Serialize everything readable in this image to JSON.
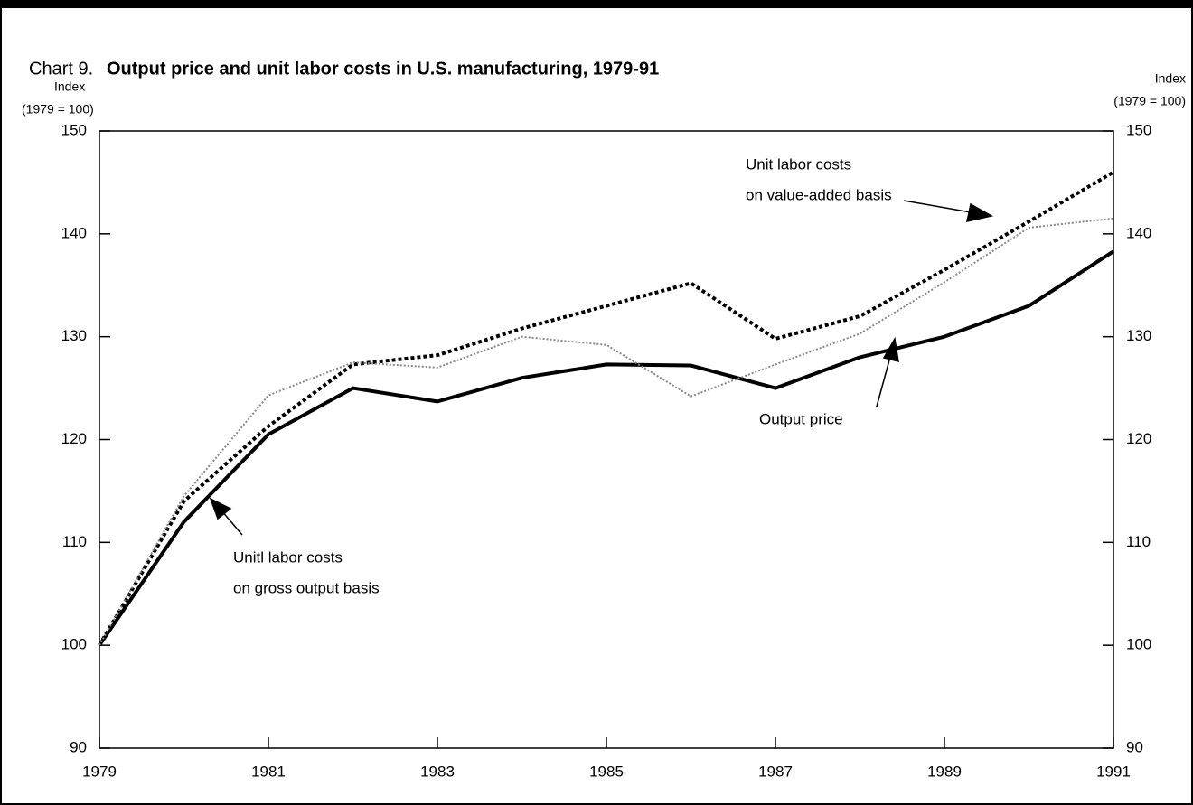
{
  "chart_data": {
    "type": "line",
    "chart_label": "Chart 9.",
    "title": "Output price and unit labor costs in U.S. manufacturing, 1979-91",
    "y_label": [
      "Index",
      "(1979 = 100)"
    ],
    "y2_label": [
      "Index",
      "(1979 = 100)"
    ],
    "x": [
      1979,
      1980,
      1981,
      1982,
      1983,
      1984,
      1985,
      1986,
      1987,
      1988,
      1989,
      1990,
      1991
    ],
    "series": [
      {
        "color": "#000000",
        "style": "solid",
        "values": [
          100,
          112,
          120.5,
          125,
          123.7,
          126,
          127.3,
          127.2,
          125,
          128,
          130,
          133,
          138.3
        ]
      },
      {
        "color": "#000000",
        "style": "dashed",
        "values": [
          100,
          114,
          121.3,
          127.3,
          128.2,
          130.8,
          133,
          135.2,
          129.8,
          132,
          136.5,
          141.2,
          146
        ]
      },
      {
        "color": "#888888",
        "style": "dotted",
        "values": [
          100,
          114.5,
          124.3,
          127.5,
          127,
          130,
          129.2,
          124.2,
          127.3,
          130.3,
          135.3,
          140.6,
          141.5
        ]
      }
    ],
    "xlim": [
      1979,
      1991
    ],
    "xticks": [
      1979,
      1981,
      1983,
      1985,
      1987,
      1989,
      1991
    ],
    "ylim": [
      90,
      150
    ],
    "yticks": [
      90,
      100,
      110,
      120,
      130,
      140,
      150
    ],
    "y2lim": [
      90,
      150
    ],
    "y2ticks": [
      90,
      100,
      110,
      120,
      130,
      140,
      150
    ],
    "annotations": [
      {
        "lines": [
          "Unit labor costs",
          "on value-added basis"
        ]
      },
      {
        "lines": [
          "Output price"
        ]
      },
      {
        "lines": [
          "Unitl labor costs",
          "on gross output basis"
        ]
      }
    ]
  }
}
